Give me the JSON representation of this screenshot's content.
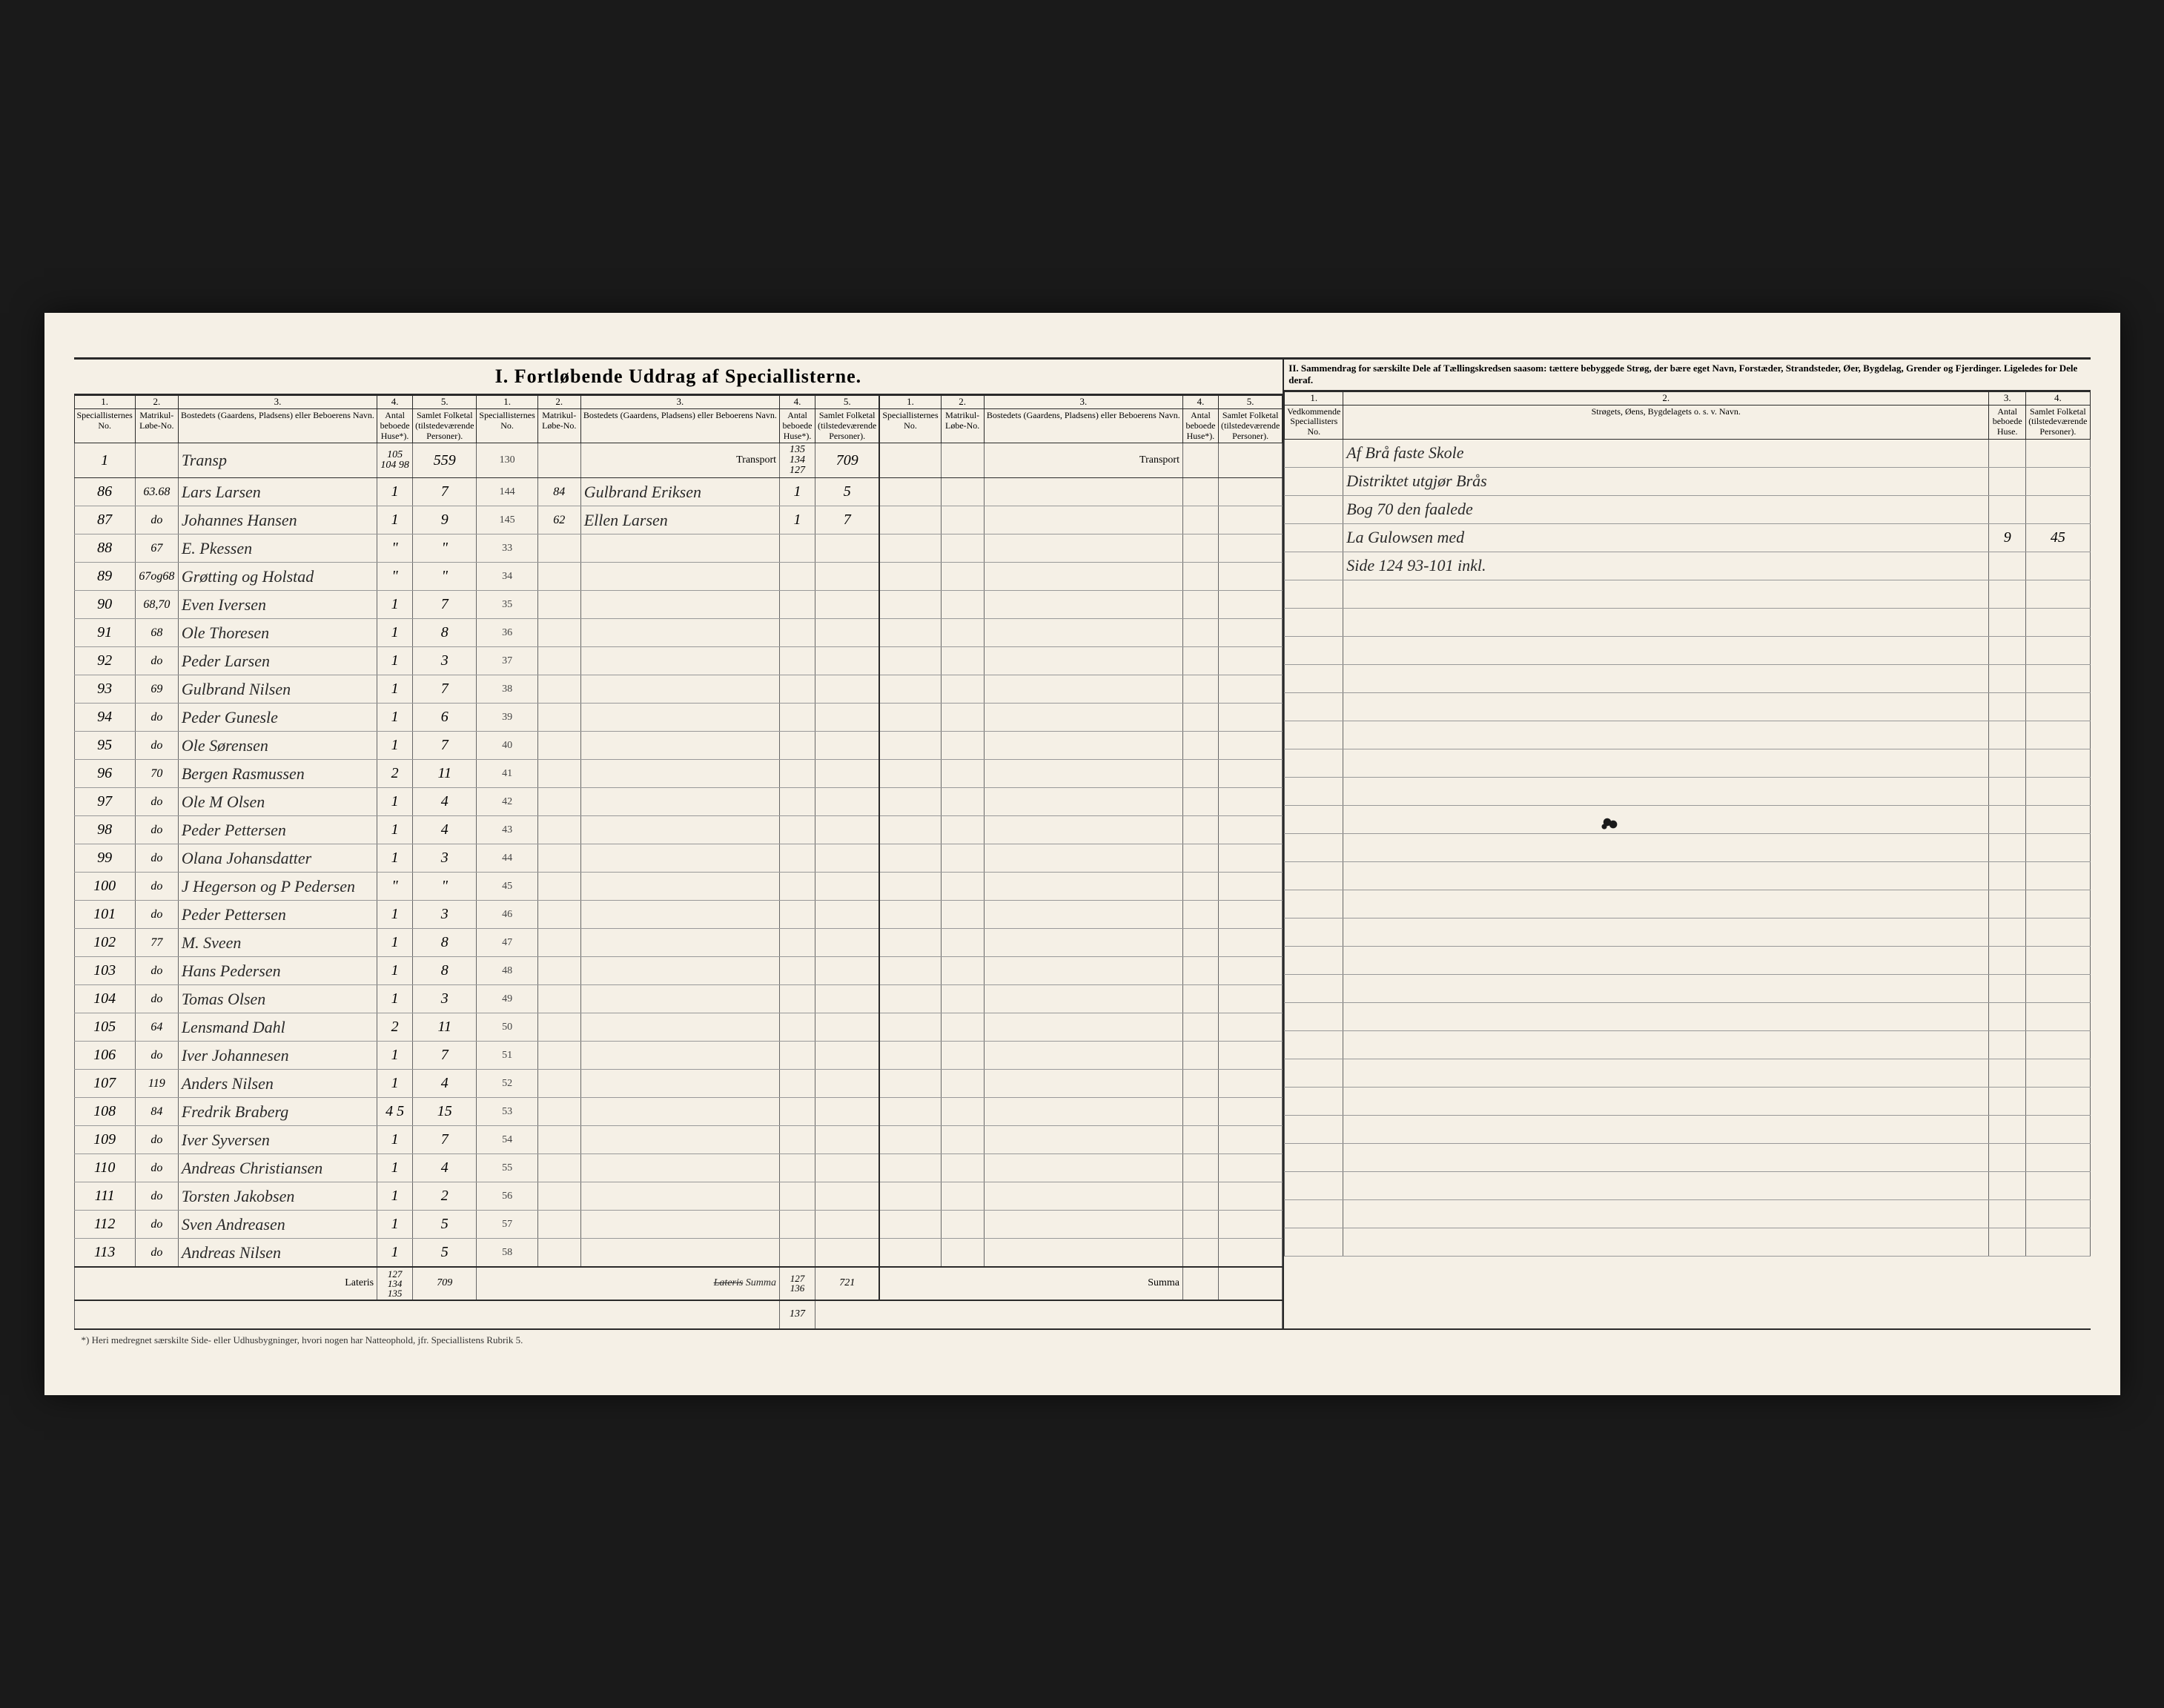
{
  "title": "I. Fortløbende Uddrag af Speciallisterne.",
  "section2_title": "II. Sammendrag for særskilte Dele af Tællingskredsen saasom: tættere bebyggede Strøg, der bære eget Navn, Forstæder, Strandsteder, Øer, Bygdelag, Grender og Fjerdinger. Ligeledes for Dele deraf.",
  "col_nums_left": [
    "1.",
    "2.",
    "3.",
    "4.",
    "5."
  ],
  "col_nums_right": [
    "1.",
    "2.",
    "3.",
    "4."
  ],
  "headers": {
    "special_no": "Speciallisternes No.",
    "matrikul": "Matrikul-Løbe-No.",
    "bosted": "Bostedets (Gaardens, Pladsens) eller Beboerens Navn.",
    "huse": "Antal beboede Huse*).",
    "folketal": "Samlet Folketal (tilstedeværende Personer).",
    "vedkommende": "Vedkommende Speciallisters No.",
    "stroget": "Strøgets, Øens, Bygdelagets o. s. v. Navn.",
    "antal_huse": "Antal beboede Huse.",
    "samlet_folk": "Samlet Folketal (tilstedeværende Personer)."
  },
  "transport_label": "Transport",
  "lateris_label": "Lateris",
  "summa_label": "Summa",
  "footnote": "*) Heri medregnet særskilte Side- eller Udhusbygninger, hvori nogen har Natteophold, jfr. Speciallistens Rubrik 5.",
  "transport_left": {
    "no": "1",
    "name": "Transp",
    "huse": "105\n104\n98",
    "folk": "559",
    "sec_no": "130"
  },
  "transport_center": {
    "huse": "135\n134\n127",
    "folk": "709"
  },
  "rows_left": [
    {
      "no": "86",
      "mat": "63.68",
      "name": "Lars Larsen",
      "huse": "1",
      "folk": "7",
      "secno": "144",
      "secmat": "84",
      "secname": "Gulbrand Eriksen",
      "sechuse": "1",
      "secfolk": "5"
    },
    {
      "no": "87",
      "mat": "do",
      "name": "Johannes Hansen",
      "huse": "1",
      "folk": "9",
      "secno": "145",
      "secmat": "62",
      "secname": "Ellen Larsen",
      "sechuse": "1",
      "secfolk": "7"
    },
    {
      "no": "88",
      "mat": "67",
      "name": "E. Pkessen",
      "huse": "\"",
      "folk": "\"",
      "secno": "33",
      "secmat": "",
      "secname": "",
      "sechuse": "",
      "secfolk": ""
    },
    {
      "no": "89",
      "mat": "67og68",
      "name": "Grøtting og Holstad",
      "huse": "\"",
      "folk": "\"",
      "secno": "34",
      "secmat": "",
      "secname": "",
      "sechuse": "",
      "secfolk": ""
    },
    {
      "no": "90",
      "mat": "68,70",
      "name": "Even Iversen",
      "huse": "1",
      "folk": "7",
      "secno": "35",
      "secmat": "",
      "secname": "",
      "sechuse": "",
      "secfolk": ""
    },
    {
      "no": "91",
      "mat": "68",
      "name": "Ole Thoresen",
      "huse": "1",
      "folk": "8",
      "secno": "36",
      "secmat": "",
      "secname": "",
      "sechuse": "",
      "secfolk": ""
    },
    {
      "no": "92",
      "mat": "do",
      "name": "Peder Larsen",
      "huse": "1",
      "folk": "3",
      "secno": "37",
      "secmat": "",
      "secname": "",
      "sechuse": "",
      "secfolk": ""
    },
    {
      "no": "93",
      "mat": "69",
      "name": "Gulbrand Nilsen",
      "huse": "1",
      "folk": "7",
      "secno": "38",
      "secmat": "",
      "secname": "",
      "sechuse": "",
      "secfolk": ""
    },
    {
      "no": "94",
      "mat": "do",
      "name": "Peder Gunesle",
      "huse": "1",
      "folk": "6",
      "secno": "39",
      "secmat": "",
      "secname": "",
      "sechuse": "",
      "secfolk": ""
    },
    {
      "no": "95",
      "mat": "do",
      "name": "Ole Sørensen",
      "huse": "1",
      "folk": "7",
      "secno": "40",
      "secmat": "",
      "secname": "",
      "sechuse": "",
      "secfolk": ""
    },
    {
      "no": "96",
      "mat": "70",
      "name": "Bergen Rasmussen",
      "huse": "2",
      "folk": "11",
      "secno": "41",
      "secmat": "",
      "secname": "",
      "sechuse": "",
      "secfolk": ""
    },
    {
      "no": "97",
      "mat": "do",
      "name": "Ole M Olsen",
      "huse": "1",
      "folk": "4",
      "secno": "42",
      "secmat": "",
      "secname": "",
      "sechuse": "",
      "secfolk": ""
    },
    {
      "no": "98",
      "mat": "do",
      "name": "Peder Pettersen",
      "huse": "1",
      "folk": "4",
      "secno": "43",
      "secmat": "",
      "secname": "",
      "sechuse": "",
      "secfolk": ""
    },
    {
      "no": "99",
      "mat": "do",
      "name": "Olana Johansdatter",
      "huse": "1",
      "folk": "3",
      "secno": "44",
      "secmat": "",
      "secname": "",
      "sechuse": "",
      "secfolk": ""
    },
    {
      "no": "100",
      "mat": "do",
      "name": "J Hegerson og P Pedersen",
      "huse": "\"",
      "folk": "\"",
      "secno": "45",
      "secmat": "",
      "secname": "",
      "sechuse": "",
      "secfolk": ""
    },
    {
      "no": "101",
      "mat": "do",
      "name": "Peder Pettersen",
      "huse": "1",
      "folk": "3",
      "secno": "46",
      "secmat": "",
      "secname": "",
      "sechuse": "",
      "secfolk": ""
    },
    {
      "no": "102",
      "mat": "77",
      "name": "M. Sveen",
      "huse": "1",
      "folk": "8",
      "secno": "47",
      "secmat": "",
      "secname": "",
      "sechuse": "",
      "secfolk": ""
    },
    {
      "no": "103",
      "mat": "do",
      "name": "Hans Pedersen",
      "huse": "1",
      "folk": "8",
      "secno": "48",
      "secmat": "",
      "secname": "",
      "sechuse": "",
      "secfolk": ""
    },
    {
      "no": "104",
      "mat": "do",
      "name": "Tomas Olsen",
      "huse": "1",
      "folk": "3",
      "secno": "49",
      "secmat": "",
      "secname": "",
      "sechuse": "",
      "secfolk": ""
    },
    {
      "no": "105",
      "mat": "64",
      "name": "Lensmand Dahl",
      "huse": "2",
      "folk": "11",
      "secno": "50",
      "secmat": "",
      "secname": "",
      "sechuse": "",
      "secfolk": ""
    },
    {
      "no": "106",
      "mat": "do",
      "name": "Iver Johannesen",
      "huse": "1",
      "folk": "7",
      "secno": "51",
      "secmat": "",
      "secname": "",
      "sechuse": "",
      "secfolk": ""
    },
    {
      "no": "107",
      "mat": "119",
      "name": "Anders Nilsen",
      "huse": "1",
      "folk": "4",
      "secno": "52",
      "secmat": "",
      "secname": "",
      "sechuse": "",
      "secfolk": ""
    },
    {
      "no": "108",
      "mat": "84",
      "name": "Fredrik Braberg",
      "huse": "4 5",
      "folk": "15",
      "secno": "53",
      "secmat": "",
      "secname": "",
      "sechuse": "",
      "secfolk": ""
    },
    {
      "no": "109",
      "mat": "do",
      "name": "Iver Syversen",
      "huse": "1",
      "folk": "7",
      "secno": "54",
      "secmat": "",
      "secname": "",
      "sechuse": "",
      "secfolk": ""
    },
    {
      "no": "110",
      "mat": "do",
      "name": "Andreas Christiansen",
      "huse": "1",
      "folk": "4",
      "secno": "55",
      "secmat": "",
      "secname": "",
      "sechuse": "",
      "secfolk": ""
    },
    {
      "no": "111",
      "mat": "do",
      "name": "Torsten Jakobsen",
      "huse": "1",
      "folk": "2",
      "secno": "56",
      "secmat": "",
      "secname": "",
      "sechuse": "",
      "secfolk": ""
    },
    {
      "no": "112",
      "mat": "do",
      "name": "Sven Andreasen",
      "huse": "1",
      "folk": "5",
      "secno": "57",
      "secmat": "",
      "secname": "",
      "sechuse": "",
      "secfolk": ""
    },
    {
      "no": "113",
      "mat": "do",
      "name": "Andreas Nilsen",
      "huse": "1",
      "folk": "5",
      "secno": "58",
      "secmat": "",
      "secname": "",
      "sechuse": "",
      "secfolk": ""
    }
  ],
  "lateris_left": {
    "huse": "127\n134 135",
    "folk": "709"
  },
  "lateris_center": {
    "label": "Summa",
    "huse": "127\n136",
    "folk": "721",
    "extra": "137"
  },
  "right_rows": [
    {
      "text": "Af Brå faste Skole"
    },
    {
      "text": "Distriktet utgjør Brås"
    },
    {
      "text": "Bog 70 den faalede"
    },
    {
      "text": "La Gulowsen med",
      "huse": "9",
      "folk": "45"
    },
    {
      "text": "Side 124 93-101 inkl."
    }
  ]
}
